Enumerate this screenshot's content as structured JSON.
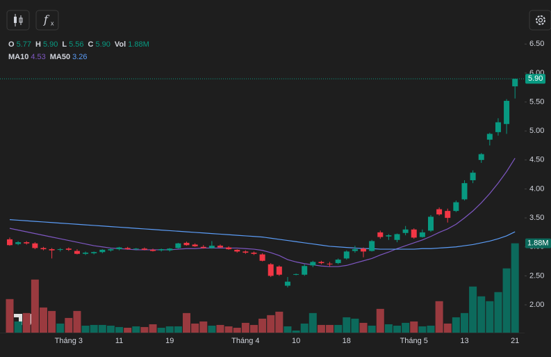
{
  "chart_data": {
    "type": "candlestick",
    "categories": [
      null,
      null,
      null,
      null,
      null,
      null,
      null,
      "Tháng 3",
      null,
      null,
      null,
      null,
      null,
      "11",
      null,
      null,
      null,
      null,
      null,
      "19",
      null,
      null,
      null,
      null,
      null,
      null,
      null,
      null,
      "Tháng 4",
      null,
      null,
      null,
      null,
      null,
      "10",
      null,
      null,
      null,
      null,
      null,
      "18",
      null,
      null,
      null,
      null,
      null,
      null,
      null,
      "Tháng 5",
      null,
      null,
      null,
      null,
      null,
      "13",
      null,
      null,
      null,
      null,
      null,
      "21"
    ],
    "open": [
      3.13,
      3.05,
      3.08,
      3.06,
      2.98,
      2.96,
      2.95,
      2.97,
      2.93,
      2.88,
      2.89,
      2.91,
      2.94,
      2.96,
      2.98,
      2.96,
      2.97,
      2.95,
      2.94,
      2.94,
      2.98,
      3.07,
      3.04,
      3.0,
      2.98,
      3.02,
      2.99,
      2.95,
      2.92,
      2.9,
      2.87,
      2.7,
      2.66,
      2.33,
      2.52,
      2.52,
      2.68,
      2.74,
      2.71,
      2.72,
      2.8,
      2.93,
      2.97,
      2.93,
      3.25,
      3.18,
      3.12,
      3.24,
      3.3,
      3.17,
      3.28,
      3.65,
      3.62,
      3.62,
      3.82,
      4.15,
      4.5,
      4.85,
      4.98,
      5.12,
      5.77
    ],
    "high": [
      3.16,
      3.1,
      3.1,
      3.08,
      3.0,
      2.98,
      2.98,
      2.99,
      2.96,
      2.92,
      2.92,
      2.96,
      2.97,
      3.0,
      3.0,
      2.98,
      2.99,
      2.97,
      2.97,
      2.98,
      3.07,
      3.09,
      3.06,
      3.03,
      3.1,
      3.04,
      3.01,
      2.96,
      2.94,
      2.92,
      2.89,
      2.72,
      2.68,
      2.48,
      2.54,
      2.7,
      2.76,
      2.76,
      2.74,
      2.8,
      2.94,
      3.02,
      2.99,
      3.12,
      3.28,
      3.22,
      3.23,
      3.36,
      3.32,
      3.3,
      3.55,
      3.68,
      3.66,
      3.8,
      4.15,
      4.32,
      4.62,
      4.97,
      5.22,
      5.55,
      5.9
    ],
    "low": [
      3.02,
      3.03,
      3.04,
      2.96,
      2.94,
      2.8,
      2.92,
      2.93,
      2.87,
      2.86,
      2.87,
      2.89,
      2.92,
      2.94,
      2.95,
      2.94,
      2.94,
      2.92,
      2.92,
      2.92,
      2.97,
      3.02,
      3.0,
      2.97,
      2.97,
      2.98,
      2.95,
      2.9,
      2.88,
      2.86,
      2.75,
      2.48,
      2.5,
      2.3,
      2.51,
      2.5,
      2.65,
      2.7,
      2.66,
      2.7,
      2.78,
      2.9,
      2.82,
      2.92,
      3.14,
      3.12,
      3.08,
      3.2,
      3.14,
      3.16,
      3.26,
      3.54,
      3.42,
      3.6,
      3.8,
      4.1,
      4.45,
      4.75,
      4.92,
      4.95,
      5.56
    ],
    "close": [
      3.03,
      3.08,
      3.06,
      2.98,
      2.96,
      2.94,
      2.96,
      2.95,
      2.88,
      2.9,
      2.91,
      2.95,
      2.96,
      2.99,
      2.96,
      2.97,
      2.95,
      2.93,
      2.96,
      2.97,
      3.06,
      3.03,
      3.01,
      2.98,
      3.02,
      2.99,
      2.96,
      2.92,
      2.9,
      2.88,
      2.76,
      2.5,
      2.52,
      2.4,
      2.53,
      2.67,
      2.74,
      2.72,
      2.7,
      2.78,
      2.92,
      2.96,
      2.92,
      3.1,
      3.17,
      3.2,
      3.22,
      3.3,
      3.16,
      3.25,
      3.52,
      3.56,
      3.5,
      3.77,
      4.1,
      4.28,
      4.6,
      4.95,
      5.15,
      5.52,
      5.9
    ],
    "volume": [
      706000,
      235000,
      412000,
      1117000,
      529000,
      456000,
      191000,
      309000,
      456000,
      147000,
      162000,
      162000,
      147000,
      118000,
      103000,
      132000,
      118000,
      176000,
      103000,
      132000,
      132000,
      412000,
      191000,
      235000,
      147000,
      162000,
      132000,
      103000,
      206000,
      162000,
      294000,
      368000,
      441000,
      132000,
      44000,
      191000,
      412000,
      162000,
      162000,
      162000,
      323000,
      294000,
      206000,
      147000,
      500000,
      176000,
      147000,
      206000,
      235000,
      132000,
      147000,
      662000,
      191000,
      323000,
      412000,
      970000,
      764000,
      662000,
      853000,
      1352000,
      1880000
    ],
    "ma": [
      {
        "name": "MA10",
        "color": "#7e57c2",
        "values": [
          3.32,
          3.29,
          3.26,
          3.23,
          3.2,
          3.17,
          3.14,
          3.11,
          3.08,
          3.05,
          3.02,
          3.0,
          2.98,
          2.97,
          2.96,
          2.95,
          2.95,
          2.95,
          2.95,
          2.95,
          2.96,
          2.97,
          2.97,
          2.98,
          2.98,
          2.98,
          2.98,
          2.98,
          2.97,
          2.96,
          2.94,
          2.9,
          2.85,
          2.78,
          2.74,
          2.71,
          2.69,
          2.67,
          2.66,
          2.66,
          2.68,
          2.72,
          2.76,
          2.8,
          2.86,
          2.91,
          2.97,
          3.02,
          3.07,
          3.12,
          3.18,
          3.25,
          3.31,
          3.39,
          3.5,
          3.62,
          3.76,
          3.92,
          4.1,
          4.3,
          4.53
        ]
      },
      {
        "name": "MA50",
        "color": "#5b9cf6",
        "values": [
          3.47,
          3.46,
          3.45,
          3.44,
          3.43,
          3.42,
          3.41,
          3.4,
          3.39,
          3.38,
          3.37,
          3.36,
          3.35,
          3.34,
          3.33,
          3.32,
          3.31,
          3.3,
          3.29,
          3.28,
          3.27,
          3.26,
          3.25,
          3.24,
          3.23,
          3.22,
          3.21,
          3.2,
          3.19,
          3.18,
          3.17,
          3.15,
          3.13,
          3.11,
          3.09,
          3.07,
          3.05,
          3.03,
          3.01,
          3.0,
          2.99,
          2.98,
          2.97,
          2.97,
          2.96,
          2.96,
          2.96,
          2.96,
          2.96,
          2.97,
          2.97,
          2.98,
          2.99,
          3.0,
          3.02,
          3.04,
          3.07,
          3.1,
          3.14,
          3.19,
          3.26
        ]
      }
    ],
    "status_line": [
      {
        "name": "O",
        "value": 5.77
      },
      {
        "name": "H",
        "value": 5.9,
        "value_label": "5.90"
      },
      {
        "name": "L",
        "value": 5.56
      },
      {
        "name": "C",
        "value": 5.9,
        "value_label": "5.90"
      },
      {
        "name": "Vol",
        "value": 1880000,
        "value_label": "1.88M"
      }
    ],
    "up_color": "#089981",
    "down_color": "#f23645",
    "volume_up_color": "#0c6a5c",
    "volume_down_color": "#9a3a3f",
    "ylim": [
      1.52,
      7.26
    ],
    "yticks": [
      {
        "value": 2,
        "label": "2.00"
      },
      {
        "value": 2.5,
        "label": "2.50"
      },
      {
        "value": 3,
        "label": "3.00"
      },
      {
        "value": 3.5,
        "label": "3.50"
      },
      {
        "value": 4,
        "label": "4.00"
      },
      {
        "value": 4.5,
        "label": "4.50"
      },
      {
        "value": 5,
        "label": "5.00"
      },
      {
        "value": 5.5,
        "label": "5.50"
      },
      {
        "value": 6,
        "label": "6.00"
      },
      {
        "value": 6.5,
        "label": "6.50"
      }
    ],
    "y2lim": [
      0,
      7000000
    ],
    "grid": false
  }
}
